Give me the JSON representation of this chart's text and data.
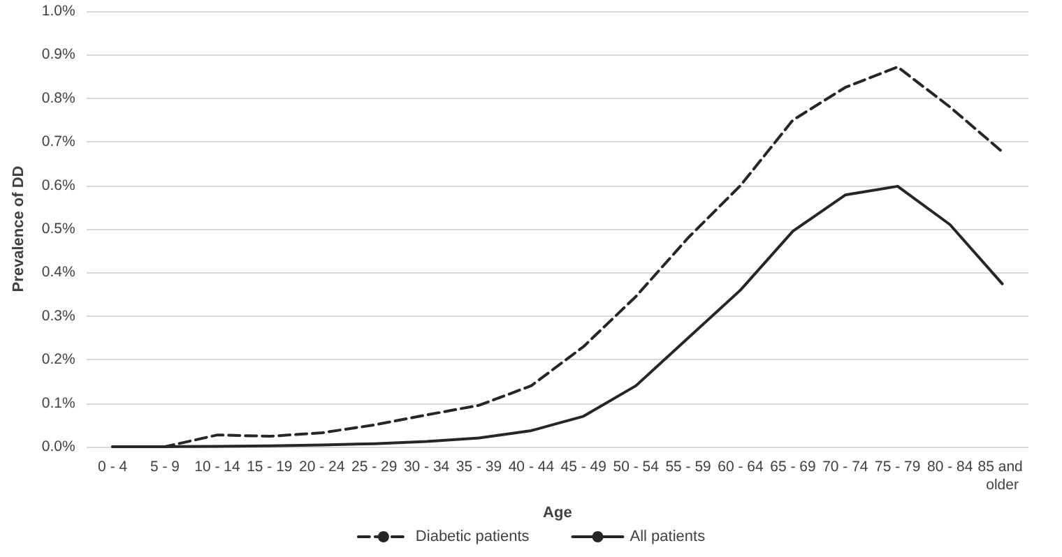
{
  "chart_data": {
    "type": "line",
    "xlabel": "Age",
    "ylabel": "Prevalence of DD",
    "categories": [
      "0 - 4",
      "5 - 9",
      "10 - 14",
      "15 - 19",
      "20 - 24",
      "25 - 29",
      "30 - 34",
      "35 - 39",
      "40 - 44",
      "45 - 49",
      "50 - 54",
      "55 - 59",
      "60 - 64",
      "65 - 69",
      "70 - 74",
      "75 - 79",
      "80 - 84",
      "85 and older"
    ],
    "series": [
      {
        "name": "Diabetic patients",
        "color": "#262626",
        "line_style": "dashed",
        "values": [
          0,
          0,
          0.027,
          0.024,
          0.032,
          0.05,
          0.073,
          0.095,
          0.14,
          0.23,
          0.345,
          0.48,
          0.6,
          0.75,
          0.825,
          0.872,
          0.78,
          0.677
        ]
      },
      {
        "name": "All patients",
        "color": "#262626",
        "line_style": "solid",
        "values": [
          0,
          0,
          0.001,
          0.002,
          0.004,
          0.007,
          0.012,
          0.02,
          0.037,
          0.07,
          0.14,
          0.25,
          0.36,
          0.495,
          0.578,
          0.598,
          0.51,
          0.374
        ]
      }
    ],
    "ylim": [
      0,
      1
    ],
    "yticks": [
      {
        "value": 0,
        "label": "0.0%"
      },
      {
        "value": 0.1,
        "label": "0.1%"
      },
      {
        "value": 0.2,
        "label": "0.2%"
      },
      {
        "value": 0.3,
        "label": "0.3%"
      },
      {
        "value": 0.4,
        "label": "0.4%"
      },
      {
        "value": 0.5,
        "label": "0.5%"
      },
      {
        "value": 0.6,
        "label": "0.6%"
      },
      {
        "value": 0.7,
        "label": "0.7%"
      },
      {
        "value": 0.8,
        "label": "0.8%"
      },
      {
        "value": 0.9,
        "label": "0.9%"
      },
      {
        "value": 1,
        "label": "1.0%"
      }
    ],
    "grid": "y",
    "legend": "bottom",
    "marker": "none"
  }
}
